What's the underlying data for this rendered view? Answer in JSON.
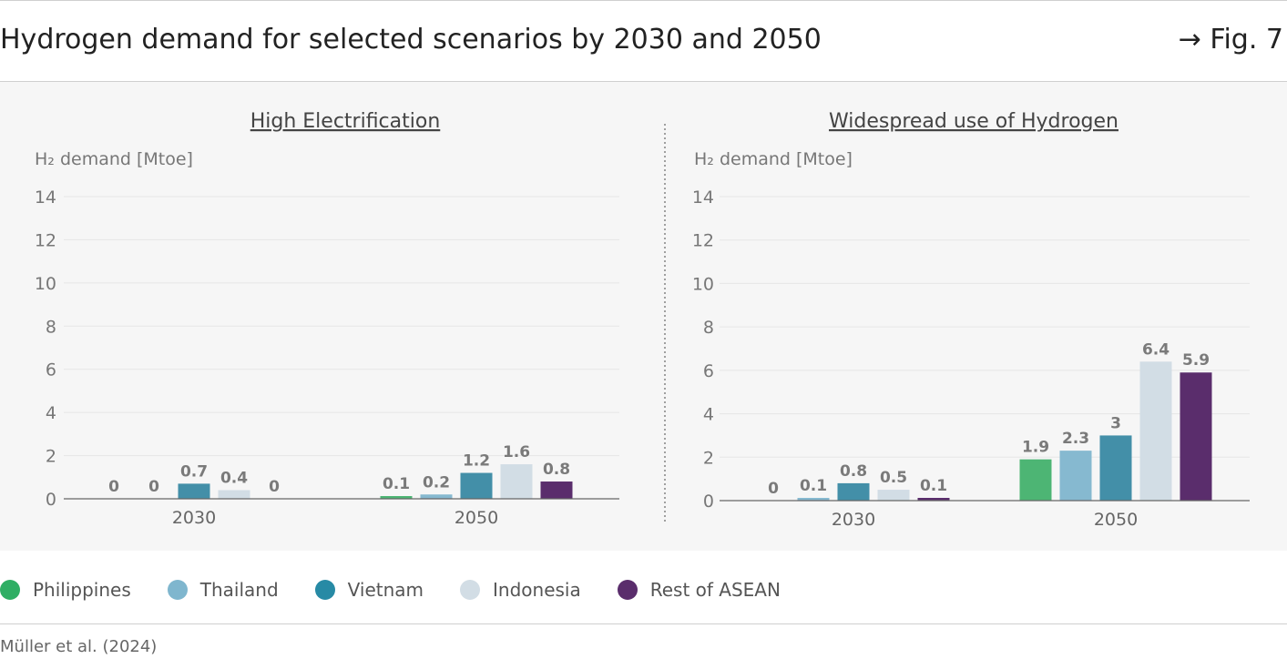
{
  "header": {
    "title": "Hydrogen demand for selected scenarios by 2030 and 2050",
    "figref": "→ Fig. 7"
  },
  "colors": {
    "Philippines": "#4db574",
    "Thailand": "#86b9d0",
    "Vietnam": "#438fa8",
    "Indonesia": "#d2dde5",
    "Rest of ASEAN": "#5a2d6c"
  },
  "legend": {
    "items": [
      {
        "label": "Philippines",
        "color": "#2fae64"
      },
      {
        "label": "Thailand",
        "color": "#7fb6ce"
      },
      {
        "label": "Vietnam",
        "color": "#278aa5"
      },
      {
        "label": "Indonesia",
        "color": "#d2dde5"
      },
      {
        "label": "Rest of ASEAN",
        "color": "#5a2d6c"
      }
    ]
  },
  "source": "Müller et al. (2024)",
  "chart_data": [
    {
      "type": "bar",
      "title": "High Electrification",
      "ylabel": "H₂ demand [Mtoe]",
      "ylim": [
        0,
        14
      ],
      "yticks": [
        0,
        2,
        4,
        6,
        8,
        10,
        12,
        14
      ],
      "categories": [
        "2030",
        "2050"
      ],
      "series": [
        {
          "name": "Philippines",
          "values": [
            0,
            0.1
          ]
        },
        {
          "name": "Thailand",
          "values": [
            0,
            0.2
          ]
        },
        {
          "name": "Vietnam",
          "values": [
            0.7,
            1.2
          ]
        },
        {
          "name": "Indonesia",
          "values": [
            0.4,
            1.6
          ]
        },
        {
          "name": "Rest of ASEAN",
          "values": [
            0,
            0.8
          ]
        }
      ],
      "grid": true
    },
    {
      "type": "bar",
      "title": "Widespread use of Hydrogen",
      "ylabel": "H₂ demand [Mtoe]",
      "ylim": [
        0,
        14
      ],
      "yticks": [
        0,
        2,
        4,
        6,
        8,
        10,
        12,
        14
      ],
      "categories": [
        "2030",
        "2050"
      ],
      "series": [
        {
          "name": "Philippines",
          "values": [
            0,
            1.9
          ]
        },
        {
          "name": "Thailand",
          "values": [
            0.1,
            2.3
          ]
        },
        {
          "name": "Vietnam",
          "values": [
            0.8,
            3
          ]
        },
        {
          "name": "Indonesia",
          "values": [
            0.5,
            6.4
          ]
        },
        {
          "name": "Rest of ASEAN",
          "values": [
            0.1,
            5.9
          ]
        }
      ],
      "grid": true
    }
  ]
}
